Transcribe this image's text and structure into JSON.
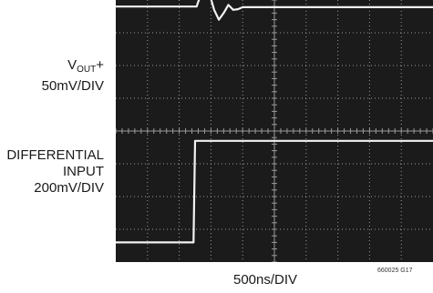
{
  "chart_data": {
    "type": "line",
    "title": "",
    "xlabel": "500ns/DIV",
    "figure_id": "660025 G17",
    "grid": true,
    "divisions": {
      "x": 10,
      "y": 8
    },
    "colors": {
      "screen": "#1b1b1b",
      "trace": "#f2f2f2",
      "grid": "#9a9a9a"
    },
    "channels": [
      {
        "name_main": "V",
        "name_sub": "OUT",
        "name_suffix": "+",
        "scale": "50mV/DIV",
        "x_div": [
          0,
          2.55,
          2.6,
          2.68,
          2.8,
          2.95,
          3.1,
          3.25,
          3.4,
          3.55,
          3.7,
          3.85,
          4.0,
          4.3,
          10
        ],
        "y_div": [
          7.8,
          7.8,
          7.95,
          8.15,
          8.3,
          8.2,
          7.7,
          7.4,
          7.6,
          7.85,
          7.7,
          7.72,
          7.78,
          7.78,
          7.78
        ]
      },
      {
        "name_lines": [
          "DIFFERENTIAL",
          "INPUT"
        ],
        "scale": "200mV/DIV",
        "x_div": [
          0,
          2.45,
          2.5,
          10
        ],
        "y_div": [
          0.6,
          0.6,
          3.7,
          3.7
        ]
      }
    ]
  }
}
